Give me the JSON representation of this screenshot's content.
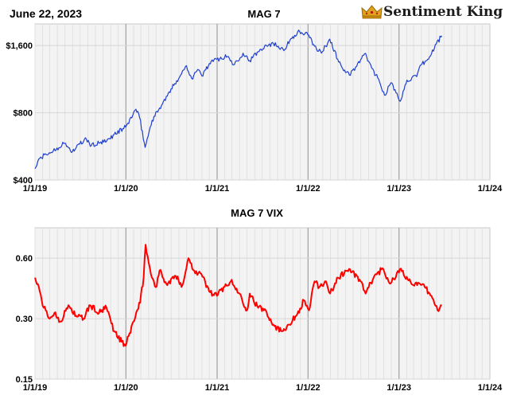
{
  "date_label": "June 22, 2023",
  "logo": {
    "text": "Sentiment King",
    "icon": "crown-icon"
  },
  "colors": {
    "mag7": "#1f3fcf",
    "vix": "#ff0000",
    "plot_bg": "#f3f3f3",
    "grid": "#e1e1e1",
    "year_line": "#a0a0a0"
  },
  "chart_data": [
    {
      "type": "line",
      "title": "MAG 7",
      "xlabel": "",
      "ylabel": "",
      "y_scale": "log",
      "ylim": [
        400,
        2000
      ],
      "xlim": [
        "1/1/19",
        "1/1/24"
      ],
      "x_tick_labels": [
        "1/1/19",
        "1/1/20",
        "1/1/21",
        "1/1/22",
        "1/1/23",
        "1/1/24"
      ],
      "y_tick_labels": [
        "$400",
        "$800",
        "$1,600"
      ],
      "y_ticks": [
        400,
        800,
        1600
      ],
      "grid": true,
      "series": [
        {
          "color": "#1f3fcf",
          "points": [
            [
              "2019-01-01",
              450
            ],
            [
              "2019-01-20",
              500
            ],
            [
              "2019-02-15",
              520
            ],
            [
              "2019-03-15",
              540
            ],
            [
              "2019-04-30",
              585
            ],
            [
              "2019-05-31",
              535
            ],
            [
              "2019-06-30",
              580
            ],
            [
              "2019-07-26",
              610
            ],
            [
              "2019-08-15",
              570
            ],
            [
              "2019-09-15",
              585
            ],
            [
              "2019-10-15",
              595
            ],
            [
              "2019-11-15",
              640
            ],
            [
              "2019-12-31",
              690
            ],
            [
              "2020-02-10",
              830
            ],
            [
              "2020-02-25",
              760
            ],
            [
              "2020-03-18",
              560
            ],
            [
              "2020-04-15",
              740
            ],
            [
              "2020-05-15",
              840
            ],
            [
              "2020-06-15",
              950
            ],
            [
              "2020-07-15",
              1080
            ],
            [
              "2020-08-31",
              1300
            ],
            [
              "2020-09-21",
              1140
            ],
            [
              "2020-10-15",
              1250
            ],
            [
              "2020-11-01",
              1170
            ],
            [
              "2020-12-01",
              1330
            ],
            [
              "2020-12-31",
              1390
            ],
            [
              "2021-02-15",
              1430
            ],
            [
              "2021-03-08",
              1310
            ],
            [
              "2021-04-15",
              1480
            ],
            [
              "2021-05-12",
              1370
            ],
            [
              "2021-06-15",
              1500
            ],
            [
              "2021-07-15",
              1610
            ],
            [
              "2021-08-15",
              1630
            ],
            [
              "2021-09-30",
              1540
            ],
            [
              "2021-10-20",
              1690
            ],
            [
              "2021-11-20",
              1840
            ],
            [
              "2021-12-31",
              1790
            ],
            [
              "2022-01-27",
              1590
            ],
            [
              "2022-02-24",
              1480
            ],
            [
              "2022-03-29",
              1710
            ],
            [
              "2022-04-30",
              1390
            ],
            [
              "2022-05-20",
              1260
            ],
            [
              "2022-06-16",
              1180
            ],
            [
              "2022-07-15",
              1290
            ],
            [
              "2022-08-16",
              1470
            ],
            [
              "2022-09-30",
              1180
            ],
            [
              "2022-10-15",
              1100
            ],
            [
              "2022-11-04",
              960
            ],
            [
              "2022-11-30",
              1090
            ],
            [
              "2022-12-28",
              940
            ],
            [
              "2023-01-06",
              900
            ],
            [
              "2023-02-02",
              1120
            ],
            [
              "2023-03-13",
              1160
            ],
            [
              "2023-03-31",
              1310
            ],
            [
              "2023-04-30",
              1390
            ],
            [
              "2023-05-31",
              1630
            ],
            [
              "2023-06-22",
              1770
            ]
          ]
        }
      ]
    },
    {
      "type": "line",
      "title": "MAG 7 VIX",
      "xlabel": "",
      "ylabel": "",
      "y_scale": "log",
      "ylim": [
        0.15,
        0.85
      ],
      "xlim": [
        "1/1/19",
        "1/1/24"
      ],
      "x_tick_labels": [
        "1/1/19",
        "1/1/20",
        "1/1/21",
        "1/1/22",
        "1/1/23",
        "1/1/24"
      ],
      "y_tick_labels": [
        "0.15",
        "0.30",
        "0.60"
      ],
      "y_ticks": [
        0.15,
        0.3,
        0.6
      ],
      "grid": true,
      "series": [
        {
          "color": "#ff0000",
          "points": [
            [
              "2019-01-01",
              0.48
            ],
            [
              "2019-01-20",
              0.41
            ],
            [
              "2019-02-05",
              0.34
            ],
            [
              "2019-03-01",
              0.3
            ],
            [
              "2019-03-20",
              0.32
            ],
            [
              "2019-04-15",
              0.29
            ],
            [
              "2019-05-15",
              0.35
            ],
            [
              "2019-06-15",
              0.31
            ],
            [
              "2019-07-15",
              0.3
            ],
            [
              "2019-08-10",
              0.35
            ],
            [
              "2019-09-15",
              0.32
            ],
            [
              "2019-10-15",
              0.34
            ],
            [
              "2019-11-15",
              0.26
            ],
            [
              "2019-12-15",
              0.23
            ],
            [
              "2019-12-31",
              0.22
            ],
            [
              "2020-01-31",
              0.29
            ],
            [
              "2020-02-27",
              0.36
            ],
            [
              "2020-03-12",
              0.48
            ],
            [
              "2020-03-20",
              0.7
            ],
            [
              "2020-04-10",
              0.5
            ],
            [
              "2020-04-30",
              0.43
            ],
            [
              "2020-05-15",
              0.52
            ],
            [
              "2020-06-15",
              0.44
            ],
            [
              "2020-07-15",
              0.49
            ],
            [
              "2020-08-15",
              0.44
            ],
            [
              "2020-09-08",
              0.6
            ],
            [
              "2020-10-01",
              0.52
            ],
            [
              "2020-10-30",
              0.5
            ],
            [
              "2020-11-30",
              0.41
            ],
            [
              "2020-12-31",
              0.39
            ],
            [
              "2021-01-27",
              0.43
            ],
            [
              "2021-02-25",
              0.46
            ],
            [
              "2021-04-01",
              0.4
            ],
            [
              "2021-05-01",
              0.33
            ],
            [
              "2021-05-12",
              0.4
            ],
            [
              "2021-06-15",
              0.34
            ],
            [
              "2021-07-15",
              0.33
            ],
            [
              "2021-08-15",
              0.28
            ],
            [
              "2021-09-15",
              0.26
            ],
            [
              "2021-10-15",
              0.28
            ],
            [
              "2021-11-15",
              0.31
            ],
            [
              "2021-12-15",
              0.37
            ],
            [
              "2022-01-05",
              0.33
            ],
            [
              "2022-01-27",
              0.46
            ],
            [
              "2022-02-15",
              0.43
            ],
            [
              "2022-03-10",
              0.46
            ],
            [
              "2022-03-31",
              0.4
            ],
            [
              "2022-05-01",
              0.48
            ],
            [
              "2022-06-15",
              0.53
            ],
            [
              "2022-07-31",
              0.46
            ],
            [
              "2022-08-20",
              0.4
            ],
            [
              "2022-09-30",
              0.5
            ],
            [
              "2022-10-30",
              0.53
            ],
            [
              "2022-11-20",
              0.46
            ],
            [
              "2022-12-15",
              0.47
            ],
            [
              "2023-01-05",
              0.53
            ],
            [
              "2023-02-05",
              0.47
            ],
            [
              "2023-03-15",
              0.44
            ],
            [
              "2023-04-15",
              0.43
            ],
            [
              "2023-05-15",
              0.38
            ],
            [
              "2023-06-05",
              0.33
            ],
            [
              "2023-06-22",
              0.35
            ]
          ]
        }
      ]
    }
  ]
}
